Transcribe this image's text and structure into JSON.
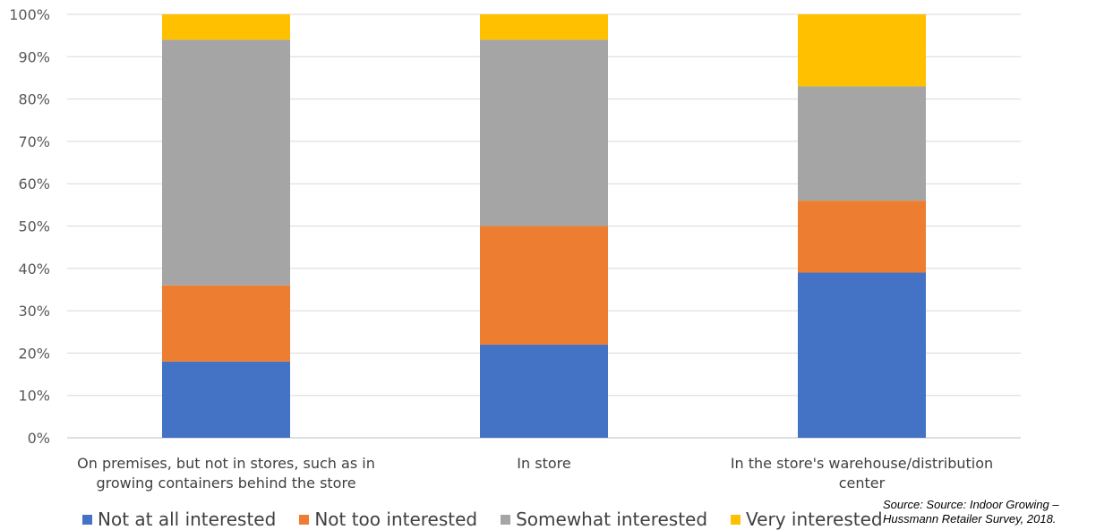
{
  "chart_data": {
    "type": "bar",
    "stacked": true,
    "categories": [
      [
        "On premises, but not in stores, such as in",
        "growing containers behind the store"
      ],
      [
        "In store"
      ],
      [
        "In the store's warehouse/distribution",
        "center"
      ]
    ],
    "series": [
      {
        "name": "Not at all interested",
        "color": "#4472C4",
        "values": [
          18,
          22,
          39
        ]
      },
      {
        "name": "Not too interested",
        "color": "#ED7D31",
        "values": [
          18,
          28,
          17
        ]
      },
      {
        "name": "Somewhat interested",
        "color": "#A5A5A5",
        "values": [
          58,
          44,
          27
        ]
      },
      {
        "name": "Very interested",
        "color": "#FFC000",
        "values": [
          6,
          6,
          17
        ]
      }
    ],
    "yticks": [
      "0%",
      "10%",
      "20%",
      "30%",
      "40%",
      "50%",
      "60%",
      "70%",
      "80%",
      "90%",
      "100%"
    ],
    "ylim": [
      0,
      100
    ],
    "grid": true,
    "legend_position": "bottom"
  },
  "source_note": [
    "Source: Source: Indoor Growing –",
    "Hussmann Retailer Survey, 2018."
  ]
}
